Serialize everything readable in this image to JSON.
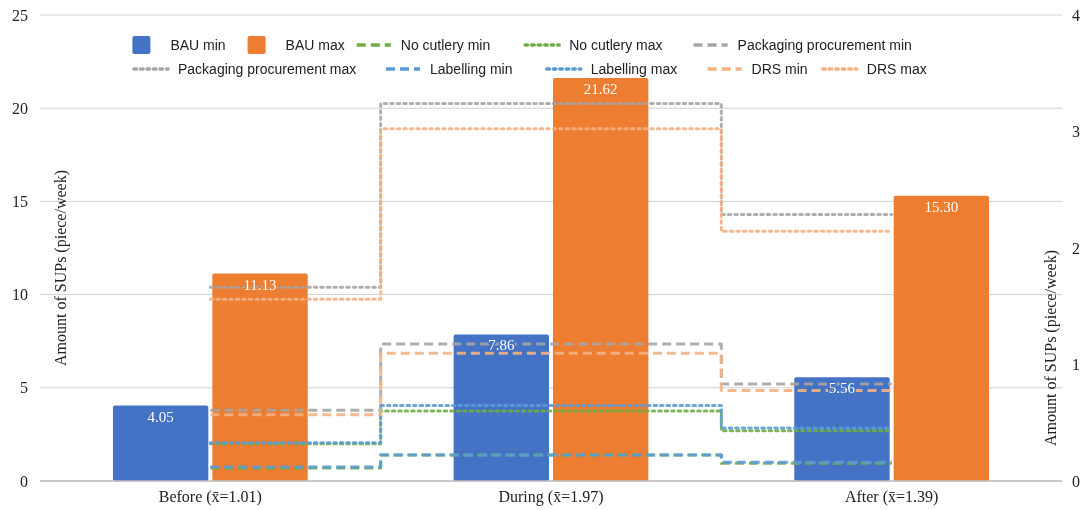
{
  "chart_data": {
    "type": "bar",
    "categories": [
      "Before (x̄=1.01)",
      "During (x̄=1.97)",
      "After (x̄=1.39)"
    ],
    "ylabel": "Amount of SUPs (piece/week)",
    "y2label": "Amount of SUPs (piece/week)",
    "ylim": [
      0,
      25
    ],
    "yticks": [
      0,
      5,
      10,
      15,
      20,
      25
    ],
    "y2lim": [
      0,
      4
    ],
    "y2ticks": [
      0,
      1,
      2,
      3,
      4
    ],
    "grid": "y",
    "legend": "top",
    "series": [
      {
        "name": "BAU min",
        "color": "#4472c4",
        "values": [
          4.05,
          7.86,
          5.56
        ],
        "value_labels": [
          "4.05",
          "7.86",
          "5.56"
        ]
      },
      {
        "name": "BAU max",
        "color": "#ed7d31",
        "values": [
          11.13,
          21.62,
          15.3
        ],
        "value_labels": [
          "11.13",
          "21.62",
          "15.30"
        ]
      },
      {
        "name": "No cutlery min",
        "type": "step",
        "line_style": "dashed",
        "color": "#70ad47",
        "values": [
          0.7,
          1.4,
          0.95
        ]
      },
      {
        "name": "No cutlery max",
        "type": "step",
        "line_style": "dotted",
        "color": "#70ad47",
        "values": [
          2.0,
          3.75,
          2.7
        ]
      },
      {
        "name": "Packaging procurement min",
        "type": "step",
        "line_style": "dashed",
        "color": "#a5a5a5",
        "values": [
          3.8,
          7.35,
          5.2
        ]
      },
      {
        "name": "Packaging procurement max",
        "type": "step",
        "line_style": "dotted",
        "color": "#a5a5a5",
        "values": [
          10.4,
          20.25,
          14.3
        ]
      },
      {
        "name": "Labelling min",
        "type": "step",
        "line_style": "dashed",
        "color": "#5b9bd5",
        "values": [
          0.75,
          1.4,
          1.0
        ]
      },
      {
        "name": "Labelling max",
        "type": "step",
        "line_style": "dotted",
        "color": "#5b9bd5",
        "values": [
          2.05,
          4.05,
          2.85
        ]
      },
      {
        "name": "DRS min",
        "type": "step",
        "line_style": "dashed",
        "color": "#f4b183",
        "values": [
          3.55,
          6.85,
          4.85
        ]
      },
      {
        "name": "DRS max",
        "type": "step",
        "line_style": "dotted",
        "color": "#f4b183",
        "values": [
          9.75,
          18.9,
          13.4
        ]
      }
    ]
  }
}
